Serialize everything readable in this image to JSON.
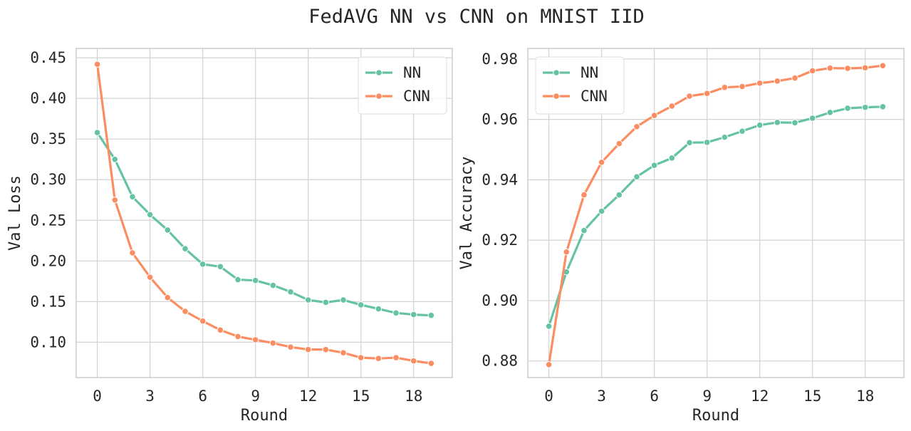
{
  "figure": {
    "title": "FedAVG NN vs CNN on MNIST IID"
  },
  "colors": {
    "NN": "#66c2a5",
    "CNN": "#fc8d62"
  },
  "chart_data": [
    {
      "type": "line",
      "xlabel": "Round",
      "ylabel": "Val Loss",
      "x": [
        0,
        1,
        2,
        3,
        4,
        5,
        6,
        7,
        8,
        9,
        10,
        11,
        12,
        13,
        14,
        15,
        16,
        17,
        18,
        19
      ],
      "xlim": [
        -1.2,
        20.2
      ],
      "ylim": [
        0.0565,
        0.4615
      ],
      "xticks": [
        0,
        3,
        6,
        9,
        12,
        15,
        18
      ],
      "yticks": [
        0.1,
        0.15,
        0.2,
        0.25,
        0.3,
        0.35,
        0.4,
        0.45
      ],
      "ytick_labels": [
        "0.10",
        "0.15",
        "0.20",
        "0.25",
        "0.30",
        "0.35",
        "0.40",
        "0.45"
      ],
      "grid": true,
      "legend": "top-right",
      "series": [
        {
          "name": "NN",
          "values": [
            0.358,
            0.325,
            0.279,
            0.257,
            0.238,
            0.215,
            0.196,
            0.193,
            0.177,
            0.176,
            0.17,
            0.162,
            0.152,
            0.149,
            0.152,
            0.146,
            0.141,
            0.136,
            0.134,
            0.133
          ]
        },
        {
          "name": "CNN",
          "values": [
            0.442,
            0.275,
            0.21,
            0.18,
            0.155,
            0.138,
            0.126,
            0.115,
            0.107,
            0.103,
            0.099,
            0.094,
            0.091,
            0.091,
            0.087,
            0.081,
            0.08,
            0.081,
            0.077,
            0.074
          ]
        }
      ]
    },
    {
      "type": "line",
      "xlabel": "Round",
      "ylabel": "Val Accuracy",
      "x": [
        0,
        1,
        2,
        3,
        4,
        5,
        6,
        7,
        8,
        9,
        10,
        11,
        12,
        13,
        14,
        15,
        16,
        17,
        18,
        19
      ],
      "xlim": [
        -1.2,
        20.2
      ],
      "ylim": [
        0.8745,
        0.9835
      ],
      "xticks": [
        0,
        3,
        6,
        9,
        12,
        15,
        18
      ],
      "yticks": [
        0.88,
        0.9,
        0.92,
        0.94,
        0.96,
        0.98
      ],
      "ytick_labels": [
        "0.88",
        "0.90",
        "0.92",
        "0.94",
        "0.96",
        "0.98"
      ],
      "grid": true,
      "legend": "top-left",
      "series": [
        {
          "name": "NN",
          "values": [
            0.8915,
            0.9095,
            0.9232,
            0.9296,
            0.935,
            0.941,
            0.9448,
            0.9472,
            0.9523,
            0.9524,
            0.9541,
            0.9561,
            0.9581,
            0.959,
            0.9589,
            0.9604,
            0.9623,
            0.9637,
            0.964,
            0.9642
          ]
        },
        {
          "name": "CNN",
          "values": [
            0.8788,
            0.9161,
            0.935,
            0.9458,
            0.952,
            0.9576,
            0.9613,
            0.9644,
            0.9677,
            0.9686,
            0.9706,
            0.9709,
            0.972,
            0.9727,
            0.9737,
            0.9761,
            0.977,
            0.9769,
            0.9771,
            0.9778
          ]
        }
      ]
    }
  ]
}
